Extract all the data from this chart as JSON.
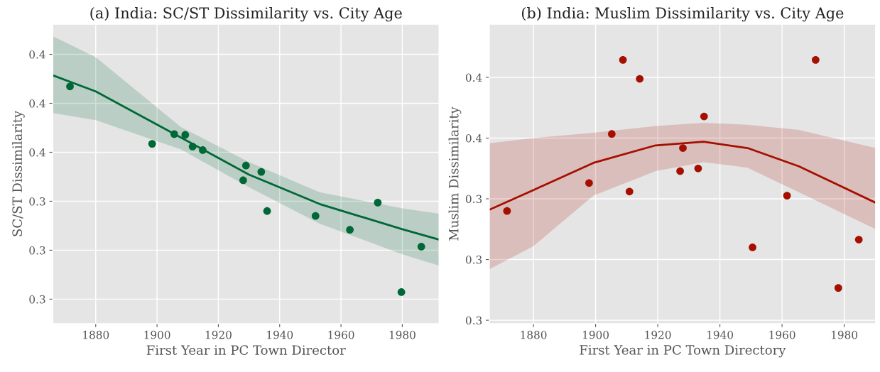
{
  "chart_data": [
    {
      "type": "scatter",
      "title": "(a) India: SC/ST Dissimilarity vs. City Age",
      "xlabel": "First Year in PC Town Director",
      "ylabel": "SC/ST Dissimilarity",
      "xlim": [
        1866,
        1992
      ],
      "ylim": [
        0.2875,
        0.4404
      ],
      "xticks": [
        1880,
        1900,
        1920,
        1940,
        1960,
        1980
      ],
      "yticks": [
        {
          "value": 0.3,
          "label": "0.3"
        },
        {
          "value": 0.325,
          "label": "0.3"
        },
        {
          "value": 0.35,
          "label": "0.3"
        },
        {
          "value": 0.375,
          "label": "0.4"
        },
        {
          "value": 0.4,
          "label": "0.4"
        },
        {
          "value": 0.425,
          "label": "0.4"
        }
      ],
      "grid": true,
      "series": [
        {
          "color": "#006837",
          "marker": "circle",
          "x": [
            1871.6,
            1898.4,
            1905.6,
            1909.2,
            1911.6,
            1914.9,
            1928.1,
            1929.0,
            1934.0,
            1935.9,
            1951.7,
            1962.9,
            1972.0,
            1979.7,
            1986.2
          ],
          "values": [
            0.4086,
            0.3793,
            0.3843,
            0.3839,
            0.3779,
            0.3761,
            0.3607,
            0.3682,
            0.365,
            0.345,
            0.3425,
            0.3354,
            0.3493,
            0.3036,
            0.3268
          ]
        },
        {
          "type": "line",
          "color": "#006837",
          "x": [
            1866,
            1880,
            1907.8,
            1930,
            1953,
            1980,
            1992
          ],
          "values": [
            0.4143,
            0.4061,
            0.3825,
            0.3636,
            0.3486,
            0.3357,
            0.3304
          ],
          "lower": [
            0.395,
            0.3914,
            0.3764,
            0.3571,
            0.3386,
            0.3229,
            0.3171
          ],
          "upper": [
            0.4343,
            0.4236,
            0.3879,
            0.37,
            0.3546,
            0.3464,
            0.3436
          ]
        }
      ]
    },
    {
      "type": "scatter",
      "title": "(b) India: Muslim Dissimilarity vs. City Age",
      "xlabel": "First Year in PC Town Directory",
      "ylabel": "Muslim Dissimilarity",
      "xlim": [
        1865.8,
        1990.1
      ],
      "ylim": [
        0.2986,
        0.4219
      ],
      "xticks": [
        1880,
        1900,
        1920,
        1940,
        1960,
        1980
      ],
      "yticks": [
        {
          "value": 0.3,
          "label": "0.3"
        },
        {
          "value": 0.325,
          "label": "0.3"
        },
        {
          "value": 0.35,
          "label": "0.3"
        },
        {
          "value": 0.375,
          "label": "0.4"
        },
        {
          "value": 0.4,
          "label": "0.4"
        }
      ],
      "grid": true,
      "series": [
        {
          "color": "#a50f00",
          "marker": "circle",
          "x": [
            1871.5,
            1897.9,
            1905.2,
            1908.8,
            1910.9,
            1914.2,
            1927.2,
            1928.1,
            1933.0,
            1934.9,
            1950.5,
            1961.6,
            1970.8,
            1978.1,
            1984.7
          ],
          "values": [
            0.345,
            0.3565,
            0.3767,
            0.4072,
            0.353,
            0.3994,
            0.3614,
            0.3709,
            0.3625,
            0.3839,
            0.33,
            0.3513,
            0.4072,
            0.3133,
            0.3332
          ]
        },
        {
          "type": "line",
          "color": "#a50f00",
          "x": [
            1865.8,
            1880,
            1899.3,
            1919.3,
            1934.7,
            1948.9,
            1965.4,
            1990.1
          ],
          "values": [
            0.3455,
            0.3536,
            0.3648,
            0.372,
            0.3735,
            0.3709,
            0.3634,
            0.3484
          ],
          "lower": [
            0.321,
            0.3305,
            0.3513,
            0.3614,
            0.3651,
            0.3628,
            0.3527,
            0.3375
          ],
          "upper": [
            0.3729,
            0.375,
            0.3772,
            0.38,
            0.3813,
            0.3805,
            0.3784,
            0.3709
          ]
        }
      ]
    }
  ]
}
